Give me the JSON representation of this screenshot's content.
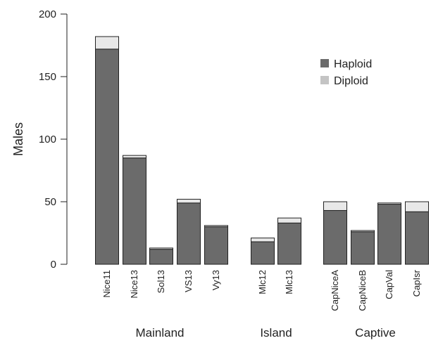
{
  "chart_data": {
    "type": "bar",
    "stacked": true,
    "ylabel": "Males",
    "ylim": [
      0,
      200
    ],
    "yticks": [
      0,
      50,
      100,
      150,
      200
    ],
    "legend_position": "top-right",
    "grid": false,
    "categories": [
      "Nice11",
      "Nice13",
      "Sol13",
      "VS13",
      "Vy13",
      "Mlc12",
      "Mlc13",
      "CapNiceA",
      "CapNiceB",
      "CapVal",
      "CapIsr"
    ],
    "groups": [
      {
        "label": "Mainland",
        "categories": [
          "Nice11",
          "Nice13",
          "Sol13",
          "VS13",
          "Vy13"
        ]
      },
      {
        "label": "Island",
        "categories": [
          "Mlc12",
          "Mlc13"
        ]
      },
      {
        "label": "Captive",
        "categories": [
          "CapNiceA",
          "CapNiceB",
          "CapVal",
          "CapIsr"
        ]
      }
    ],
    "series": [
      {
        "name": "Haploid",
        "color": "#6b6b6b",
        "values": [
          172,
          85,
          12,
          49,
          30,
          18,
          33,
          43,
          26,
          48,
          42
        ]
      },
      {
        "name": "Diploid",
        "color": "#e8e8e8",
        "values": [
          10,
          2,
          1,
          3,
          1,
          3,
          4,
          7,
          1,
          1,
          8
        ]
      }
    ]
  }
}
